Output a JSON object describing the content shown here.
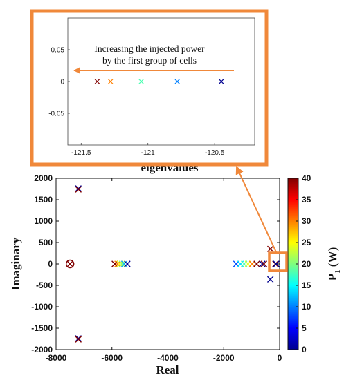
{
  "chart_data": [
    {
      "type": "scatter",
      "panel": "main",
      "title": "eigenvalues",
      "xlabel": "Real",
      "ylabel": "Imaginary",
      "xlim": [
        -8000,
        0
      ],
      "ylim": [
        -2000,
        2000
      ],
      "xticks": [
        -8000,
        -6000,
        -4000,
        -2000,
        0
      ],
      "yticks": [
        -2000,
        -1500,
        -1000,
        -500,
        0,
        500,
        1000,
        1500,
        2000
      ],
      "colorbar": {
        "label": "P",
        "label_sub": "1",
        "label_unit": " (W)",
        "range": [
          0,
          40
        ],
        "ticks": [
          0,
          5,
          10,
          15,
          20,
          25,
          30,
          35,
          40
        ]
      },
      "marker": "x",
      "points": [
        {
          "x": -7200,
          "y": 1760,
          "c": 0
        },
        {
          "x": -7200,
          "y": 1740,
          "c": 40
        },
        {
          "x": -7200,
          "y": -1740,
          "c": 0
        },
        {
          "x": -7200,
          "y": -1760,
          "c": 40
        },
        {
          "x": -5900,
          "y": 0,
          "c": 40
        },
        {
          "x": -5800,
          "y": 0,
          "c": 30
        },
        {
          "x": -5720,
          "y": 0,
          "c": 25
        },
        {
          "x": -5640,
          "y": 0,
          "c": 20
        },
        {
          "x": -5560,
          "y": 0,
          "c": 12
        },
        {
          "x": -5450,
          "y": 0,
          "c": 0
        },
        {
          "x": -1550,
          "y": 0,
          "c": 8
        },
        {
          "x": -1400,
          "y": 0,
          "c": 14
        },
        {
          "x": -1270,
          "y": 0,
          "c": 18
        },
        {
          "x": -1130,
          "y": 0,
          "c": 24
        },
        {
          "x": -980,
          "y": 0,
          "c": 30
        },
        {
          "x": -820,
          "y": 0,
          "c": 40
        },
        {
          "x": -620,
          "y": 0,
          "c": 0
        },
        {
          "x": -560,
          "y": 0,
          "c": 40
        },
        {
          "x": -330,
          "y": 350,
          "c": 40
        },
        {
          "x": -330,
          "y": -360,
          "c": 0
        },
        {
          "x": -150,
          "y": 0,
          "c": 40
        },
        {
          "x": -120,
          "y": 0,
          "c": 0
        }
      ],
      "circled_point": {
        "x": -7500,
        "y": 0,
        "c": 40
      }
    },
    {
      "type": "scatter",
      "panel": "inset",
      "xlim": [
        -121.6,
        -120.2
      ],
      "ylim": [
        -0.1,
        0.1
      ],
      "xticks": [
        -121.5,
        -121,
        -120.5
      ],
      "xtick_labels": [
        "-121.5",
        "-121",
        "-120.5"
      ],
      "yticks": [
        -0.05,
        0,
        0.05
      ],
      "ytick_labels": [
        "-0.05",
        "0",
        "0.05"
      ],
      "annotation": [
        "Increasing the injected power",
        "by the first group of cells"
      ],
      "marker": "x",
      "points": [
        {
          "x": -121.38,
          "y": 0,
          "c": 40
        },
        {
          "x": -121.28,
          "y": 0,
          "c": 30
        },
        {
          "x": -121.05,
          "y": 0,
          "c": 18
        },
        {
          "x": -120.78,
          "y": 0,
          "c": 10
        },
        {
          "x": -120.45,
          "y": 0,
          "c": 0
        }
      ]
    }
  ],
  "colors": {
    "highlight": "#f0883a",
    "axis": "#111111"
  }
}
